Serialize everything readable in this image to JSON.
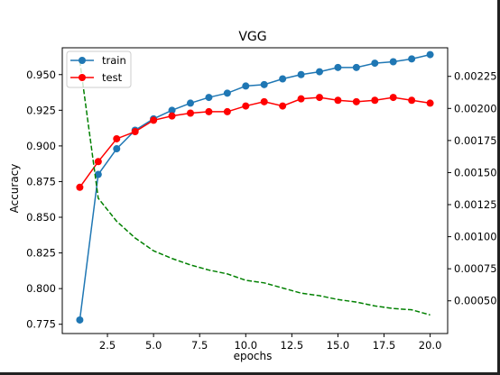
{
  "chart_data": {
    "type": "line",
    "title": "VGG",
    "xlabel": "epochs",
    "ylabel": "Accuracy",
    "x": [
      1,
      2,
      3,
      4,
      5,
      6,
      7,
      8,
      9,
      10,
      11,
      12,
      13,
      14,
      15,
      16,
      17,
      18,
      19,
      20
    ],
    "xlim": [
      0.05,
      20.95
    ],
    "xticks": [
      2.5,
      5.0,
      7.5,
      10.0,
      12.5,
      15.0,
      17.5,
      20.0
    ],
    "ylim": [
      0.7685,
      0.9688
    ],
    "yticks": [
      0.775,
      0.8,
      0.825,
      0.85,
      0.875,
      0.9,
      0.925,
      0.95
    ],
    "y2lim": [
      0.000245,
      0.002473
    ],
    "y2ticks": [
      0.0005,
      0.00075,
      0.001,
      0.00125,
      0.0015,
      0.00175,
      0.002,
      0.00225
    ],
    "grid": false,
    "legend_position": "top-left",
    "series": [
      {
        "name": "train",
        "axis": "left",
        "color": "#1f77b4",
        "marker": "circle",
        "linestyle": "solid",
        "values": [
          0.778,
          0.88,
          0.898,
          0.911,
          0.919,
          0.925,
          0.93,
          0.934,
          0.937,
          0.942,
          0.943,
          0.947,
          0.95,
          0.952,
          0.955,
          0.955,
          0.958,
          0.959,
          0.961,
          0.964
        ]
      },
      {
        "name": "test",
        "axis": "left",
        "color": "#ff0000",
        "marker": "circle",
        "linestyle": "solid",
        "values": [
          0.871,
          0.889,
          0.905,
          0.91,
          0.918,
          0.921,
          0.923,
          0.924,
          0.924,
          0.928,
          0.931,
          0.928,
          0.933,
          0.934,
          0.932,
          0.931,
          0.932,
          0.934,
          0.932,
          0.93
        ]
      },
      {
        "name": "",
        "axis": "right",
        "color": "#008000",
        "marker": "none",
        "linestyle": "dashed",
        "values": [
          0.00237,
          0.0013,
          0.00112,
          0.00099,
          0.00089,
          0.00083,
          0.00078,
          0.00074,
          0.00071,
          0.00066,
          0.00064,
          0.0006,
          0.00056,
          0.00054,
          0.00051,
          0.00049,
          0.00046,
          0.00044,
          0.00043,
          0.00039
        ]
      }
    ]
  }
}
